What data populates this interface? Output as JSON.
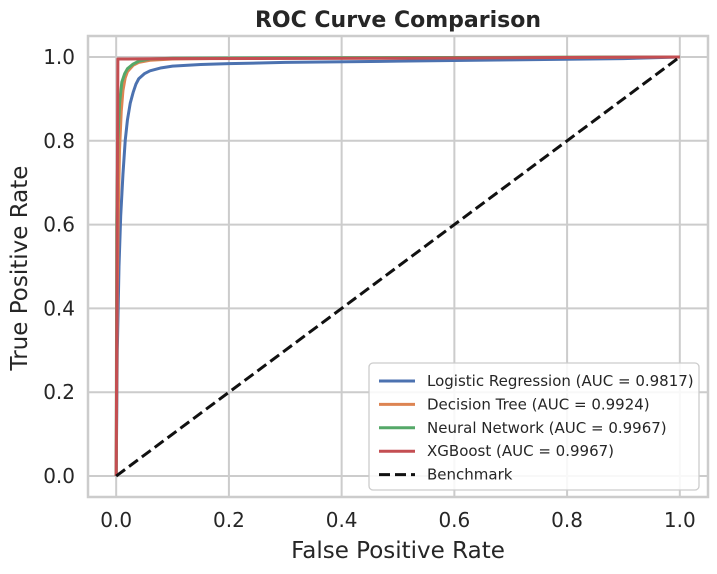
{
  "chart_data": {
    "type": "line",
    "title": "ROC Curve Comparison",
    "xlabel": "False Positive Rate",
    "ylabel": "True Positive Rate",
    "xlim": [
      -0.05,
      1.05
    ],
    "ylim": [
      -0.05,
      1.05
    ],
    "xticks": [
      "0.0",
      "0.2",
      "0.4",
      "0.6",
      "0.8",
      "1.0"
    ],
    "yticks": [
      "0.0",
      "0.2",
      "0.4",
      "0.6",
      "0.8",
      "1.0"
    ],
    "grid": true,
    "legend_position": "lower-right",
    "series": [
      {
        "name": "Logistic Regression (AUC = 0.9817)",
        "color": "#4c72b0",
        "style": "solid",
        "points": [
          [
            0,
            0
          ],
          [
            0.002,
            0.3
          ],
          [
            0.005,
            0.5
          ],
          [
            0.008,
            0.62
          ],
          [
            0.012,
            0.72
          ],
          [
            0.016,
            0.8
          ],
          [
            0.02,
            0.85
          ],
          [
            0.025,
            0.89
          ],
          [
            0.03,
            0.915
          ],
          [
            0.035,
            0.935
          ],
          [
            0.04,
            0.948
          ],
          [
            0.05,
            0.96
          ],
          [
            0.06,
            0.967
          ],
          [
            0.08,
            0.974
          ],
          [
            0.1,
            0.978
          ],
          [
            0.15,
            0.982
          ],
          [
            0.2,
            0.984
          ],
          [
            0.3,
            0.987
          ],
          [
            0.5,
            0.99
          ],
          [
            0.7,
            0.993
          ],
          [
            0.9,
            0.996
          ],
          [
            1.0,
            1.0
          ]
        ]
      },
      {
        "name": "Decision Tree (AUC = 0.9924)",
        "color": "#dd8452",
        "style": "solid",
        "points": [
          [
            0,
            0
          ],
          [
            0.002,
            0.45
          ],
          [
            0.004,
            0.65
          ],
          [
            0.006,
            0.78
          ],
          [
            0.009,
            0.87
          ],
          [
            0.012,
            0.92
          ],
          [
            0.016,
            0.95
          ],
          [
            0.02,
            0.965
          ],
          [
            0.03,
            0.98
          ],
          [
            0.04,
            0.987
          ],
          [
            0.06,
            0.992
          ],
          [
            0.1,
            0.995
          ],
          [
            0.2,
            0.997
          ],
          [
            0.5,
            0.998
          ],
          [
            1.0,
            1.0
          ]
        ]
      },
      {
        "name": "Neural Network (AUC = 0.9967)",
        "color": "#55a868",
        "style": "solid",
        "points": [
          [
            0,
            0
          ],
          [
            0.001,
            0.6
          ],
          [
            0.003,
            0.8
          ],
          [
            0.006,
            0.89
          ],
          [
            0.01,
            0.94
          ],
          [
            0.015,
            0.96
          ],
          [
            0.02,
            0.972
          ],
          [
            0.03,
            0.983
          ],
          [
            0.04,
            0.99
          ],
          [
            0.06,
            0.995
          ],
          [
            0.1,
            0.997
          ],
          [
            0.3,
            0.998
          ],
          [
            1.0,
            1.0
          ]
        ]
      },
      {
        "name": "XGBoost (AUC = 0.9967)",
        "color": "#c44e52",
        "style": "solid",
        "points": [
          [
            0,
            0
          ],
          [
            0.003,
            0.995
          ],
          [
            0.1,
            0.996
          ],
          [
            0.5,
            0.997
          ],
          [
            1.0,
            1.0
          ]
        ]
      },
      {
        "name": "Benchmark",
        "color": "#111111",
        "style": "dashed",
        "points": [
          [
            0,
            0
          ],
          [
            1,
            1
          ]
        ]
      }
    ]
  }
}
